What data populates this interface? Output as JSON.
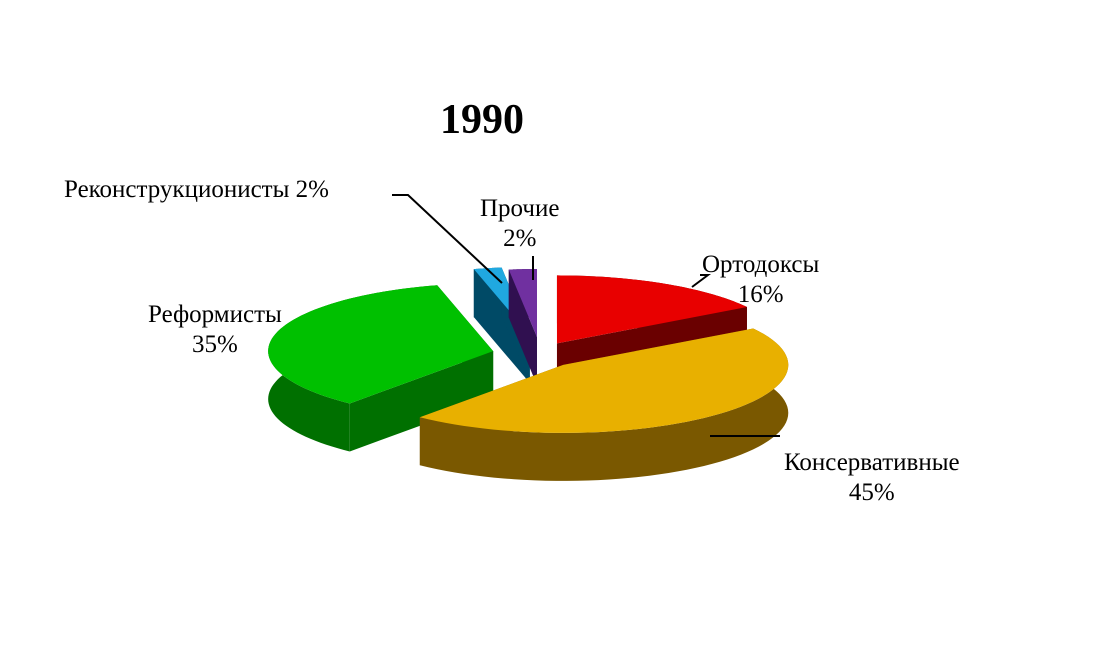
{
  "chart_data": {
    "type": "pie",
    "title": "1990",
    "style": "3d-exploded",
    "slices": [
      {
        "name": "Ортодоксы",
        "value": 16,
        "label": "16%",
        "color": "#e80000",
        "side_color": "#6a0000"
      },
      {
        "name": "Консервативные",
        "value": 45,
        "label": "45%",
        "color": "#e8b000",
        "side_color": "#7a5800"
      },
      {
        "name": "Реформисты",
        "value": 35,
        "label": "35%",
        "color": "#00c000",
        "side_color": "#007000"
      },
      {
        "name": "Реконструкционисты",
        "value": 2,
        "label": "2%",
        "color": "#20a8e0",
        "side_color": "#004a66"
      },
      {
        "name": "Прочие",
        "value": 2,
        "label": "2%",
        "color": "#7030a0",
        "side_color": "#301050"
      }
    ]
  }
}
